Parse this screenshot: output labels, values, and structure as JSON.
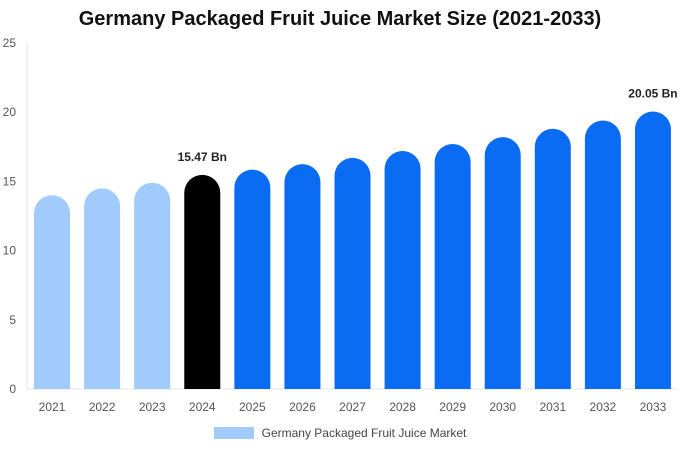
{
  "chart_data": {
    "type": "bar",
    "title": "Germany Packaged Fruit Juice Market Size (2021-2033)",
    "xlabel": "",
    "ylabel": "",
    "categories": [
      "2021",
      "2022",
      "2023",
      "2024",
      "2025",
      "2026",
      "2027",
      "2028",
      "2029",
      "2030",
      "2031",
      "2032",
      "2033"
    ],
    "series": [
      {
        "name": "Germany Packaged Fruit Juice Market",
        "values": [
          14.0,
          14.5,
          14.9,
          15.47,
          15.85,
          16.25,
          16.7,
          17.2,
          17.7,
          18.2,
          18.8,
          19.4,
          20.05
        ]
      }
    ],
    "bar_colors": [
      "#a0cbfc",
      "#a0cbfc",
      "#a0cbfc",
      "#000000",
      "#0a6cf2",
      "#0a6cf2",
      "#0a6cf2",
      "#0a6cf2",
      "#0a6cf2",
      "#0a6cf2",
      "#0a6cf2",
      "#0a6cf2",
      "#0a6cf2"
    ],
    "legend_color": "#a0cbfc",
    "data_labels": [
      {
        "index": 3,
        "text": "15.47 Bn"
      },
      {
        "index": 12,
        "text": "20.05 Bn"
      }
    ],
    "ylim": [
      0,
      25
    ],
    "yticks": [
      0,
      5,
      10,
      15,
      20,
      25
    ],
    "grid": false,
    "legend_position": "bottom"
  }
}
